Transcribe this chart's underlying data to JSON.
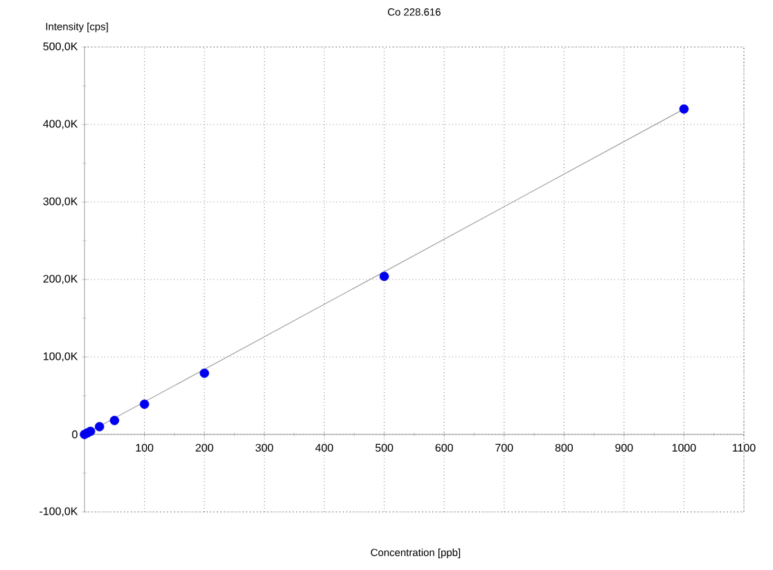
{
  "chart_data": {
    "type": "scatter",
    "title": "Co 228.616",
    "xlabel": "Concentration [ppb]",
    "ylabel": "Intensity [cps]",
    "series": [
      {
        "type": "line",
        "color": "#a0a0a0",
        "x": [
          0,
          1000
        ],
        "values": [
          0,
          420000
        ]
      },
      {
        "color": "#0000ee",
        "marker": "circle",
        "x": [
          0,
          5,
          10,
          25,
          50,
          100,
          200,
          500,
          1000
        ],
        "values": [
          0,
          2000,
          4000,
          10000,
          18000,
          39000,
          79000,
          204000,
          420000
        ]
      }
    ],
    "xlim": [
      0,
      1100
    ],
    "ylim": [
      -100000,
      500000
    ],
    "xticks": [
      100,
      200,
      300,
      400,
      500,
      600,
      700,
      800,
      900,
      1000,
      1100
    ],
    "yticks": [
      {
        "value": -100000,
        "label": "-100,0K"
      },
      {
        "value": 0,
        "label": "0"
      },
      {
        "value": 100000,
        "label": "100,0K"
      },
      {
        "value": 200000,
        "label": "200,0K"
      },
      {
        "value": 300000,
        "label": "300,0K"
      },
      {
        "value": 400000,
        "label": "400,0K"
      },
      {
        "value": 500000,
        "label": "500,0K"
      }
    ],
    "grid": true
  }
}
